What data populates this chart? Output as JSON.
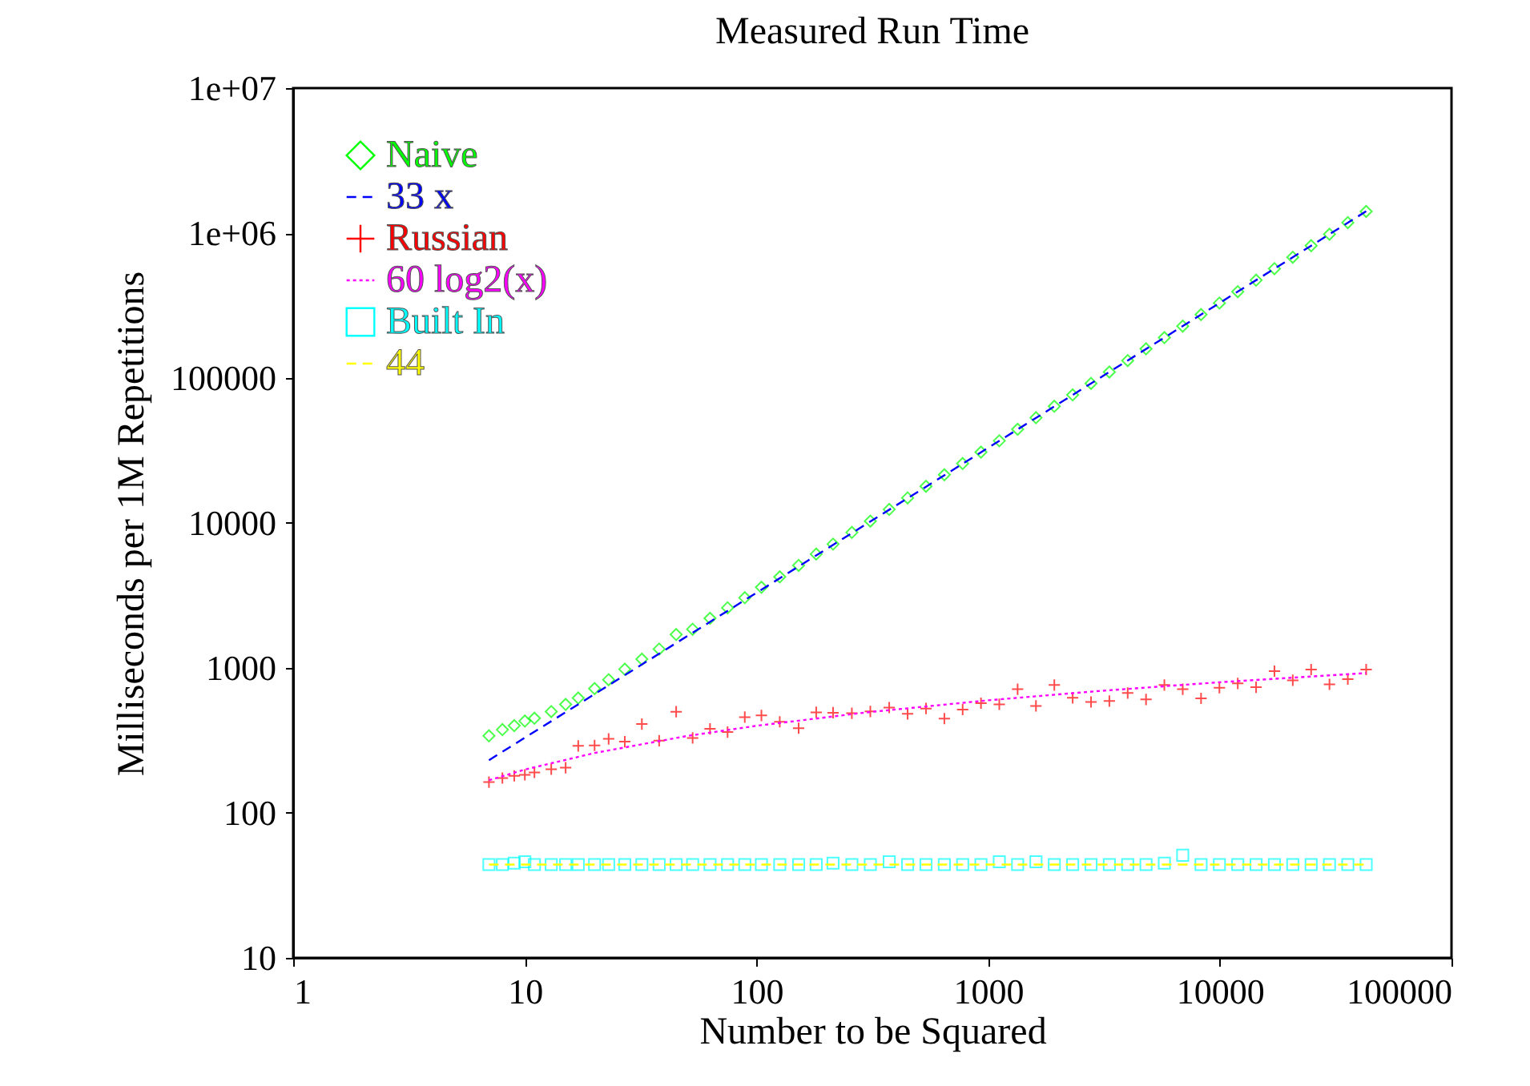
{
  "chart_data": {
    "type": "scatter",
    "title": "Measured Run Time",
    "xlabel": "Number to be Squared",
    "ylabel": "Milliseconds per 1M Repetitions",
    "log": "xy",
    "grid": false,
    "legend": "top left",
    "xlim": [
      1,
      100000
    ],
    "xticks": [
      1,
      10,
      100,
      1000,
      10000,
      100000
    ],
    "ylim": [
      10,
      10000000
    ],
    "yticks": [
      10,
      100,
      1000,
      10000,
      100000,
      {
        "value": 1000000,
        "label": "1e+06"
      },
      {
        "value": 10000000,
        "label": "1e+07"
      }
    ],
    "series": [
      {
        "name": "Naive",
        "marker": "diamond",
        "color": "#00ff00",
        "x": [
          7,
          8,
          9,
          10,
          11,
          13,
          15,
          17,
          20,
          23,
          27,
          32,
          38,
          45,
          53,
          63,
          75,
          89,
          105,
          126,
          152,
          181,
          214,
          258,
          310,
          374,
          449,
          539,
          647,
          776,
          931,
          1117,
          1340,
          1608,
          1930,
          2316,
          2779,
          3335,
          4002,
          4802,
          5762,
          6915,
          8298,
          9958,
          11950,
          14340,
          17208,
          20649,
          24779,
          29735,
          35682,
          42818
        ],
        "values": [
          340,
          375,
          400,
          430,
          450,
          500,
          560,
          620,
          720,
          830,
          980,
          1150,
          1350,
          1700,
          1850,
          2200,
          2600,
          3050,
          3600,
          4250,
          5100,
          6100,
          7150,
          8600,
          10300,
          12400,
          14900,
          17900,
          21500,
          25700,
          30800,
          36900,
          44300,
          53200,
          63800,
          76500,
          91800,
          110000,
          132000,
          159000,
          190000,
          228000,
          274000,
          329000,
          394000,
          473000,
          568000,
          681000,
          818000,
          981000,
          1180000,
          1410000
        ]
      },
      {
        "name": "33 x",
        "type": "line",
        "line_style": "dashed",
        "color": "#0000ff",
        "x": [
          7,
          42818
        ],
        "values": [
          231,
          1413000
        ]
      },
      {
        "name": "Russian",
        "marker": "cross",
        "color": "#ff0000",
        "x": [
          7,
          8,
          9,
          10,
          11,
          13,
          15,
          17,
          20,
          23,
          27,
          32,
          38,
          45,
          53,
          63,
          75,
          89,
          105,
          126,
          152,
          181,
          214,
          258,
          310,
          374,
          449,
          539,
          647,
          776,
          931,
          1117,
          1340,
          1608,
          1930,
          2316,
          2779,
          3335,
          4002,
          4802,
          5762,
          6915,
          8298,
          9958,
          11950,
          14340,
          17208,
          20649,
          24779,
          29735,
          35682,
          42818
        ],
        "values": [
          163,
          174,
          180,
          183,
          190,
          200,
          205,
          290,
          292,
          324,
          310,
          410,
          315,
          499,
          329,
          380,
          361,
          458,
          470,
          425,
          384,
          494,
          491,
          487,
          501,
          533,
          482,
          525,
          447,
          516,
          571,
          561,
          713,
          547,
          762,
          622,
          582,
          591,
          671,
          606,
          762,
          713,
          617,
          731,
          782,
          736,
          950,
          822,
          975,
          770,
          837,
          975
        ]
      },
      {
        "name": "60 log2(x)",
        "type": "line",
        "line_style": "dotted",
        "color": "#ff00ff",
        "x": [
          7,
          10,
          20,
          50,
          100,
          300,
          1000,
          3000,
          10000,
          42818
        ],
        "values": [
          168,
          199,
          259,
          339,
          399,
          494,
          598,
          693,
          797,
          922
        ]
      },
      {
        "name": "Built In",
        "marker": "square",
        "color": "#00ffff",
        "x": [
          7,
          8,
          9,
          10,
          11,
          13,
          15,
          17,
          20,
          23,
          27,
          32,
          38,
          45,
          53,
          63,
          75,
          89,
          105,
          126,
          152,
          181,
          214,
          258,
          310,
          374,
          449,
          539,
          647,
          776,
          931,
          1117,
          1340,
          1608,
          1930,
          2316,
          2779,
          3335,
          4002,
          4802,
          5762,
          6915,
          8298,
          9958,
          11950,
          14340,
          17208,
          20649,
          24779,
          29735,
          35682,
          42818
        ],
        "values": [
          44,
          44,
          45,
          46,
          44,
          44,
          44,
          44,
          44,
          44,
          44,
          44,
          44,
          44,
          44,
          44,
          44,
          44,
          44,
          44,
          44,
          44,
          45,
          44,
          44,
          46,
          44,
          44,
          44,
          44,
          44,
          46,
          44,
          46,
          44,
          44,
          44,
          44,
          44,
          44,
          45,
          51,
          44,
          44,
          44,
          44,
          44,
          44,
          44,
          44,
          44,
          44
        ]
      },
      {
        "name": "44",
        "type": "line",
        "line_style": "dashed",
        "color": "#ffff00",
        "x": [
          7,
          42818
        ],
        "values": [
          44,
          44
        ]
      }
    ]
  }
}
